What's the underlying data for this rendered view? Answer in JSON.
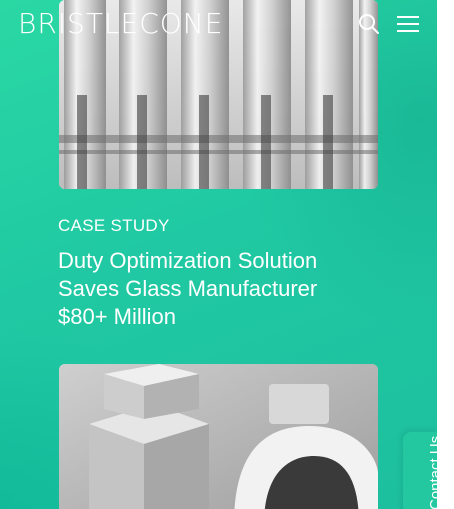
{
  "header": {
    "logo_text": "BRISTLECONE",
    "search_icon": "search-icon",
    "menu_icon": "hamburger-menu-icon"
  },
  "article": {
    "label": "CASE STUDY",
    "title": "Duty Optimization Solution Saves Glass Manufacturer $80+ Million"
  },
  "contact_tab": {
    "label": "Contact Us"
  },
  "colors": {
    "background": "#20c9a3",
    "text": "#ffffff"
  }
}
